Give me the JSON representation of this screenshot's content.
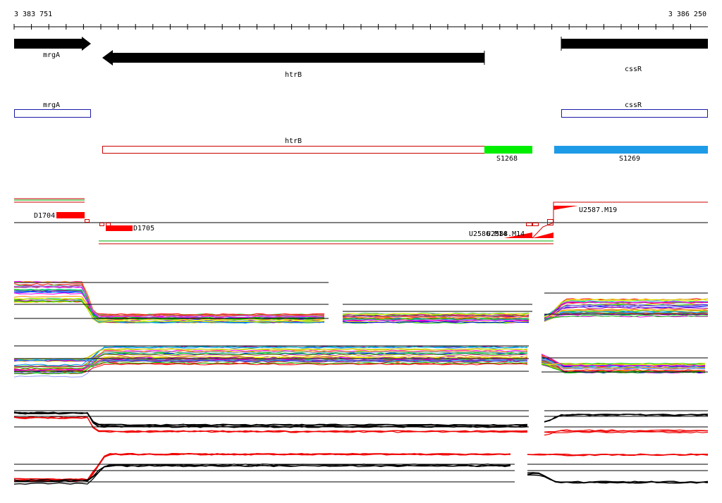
{
  "ruler": {
    "start": "3 383 751",
    "end": "3 386 250"
  },
  "genes": {
    "mrgA": "mrgA",
    "htrB": "htrB",
    "cssR": "cssR"
  },
  "transcripts": {
    "mrgA": "mrgA",
    "cssR": "cssR",
    "htrB": "htrB",
    "S1268": "S1268",
    "S1269": "S1269"
  },
  "probes": {
    "D1704": "D1704",
    "D1705": "D1705",
    "U2587": "U2587.M19",
    "U2586": "U2586.M14",
    "U2588": "U2588.M14"
  }
}
